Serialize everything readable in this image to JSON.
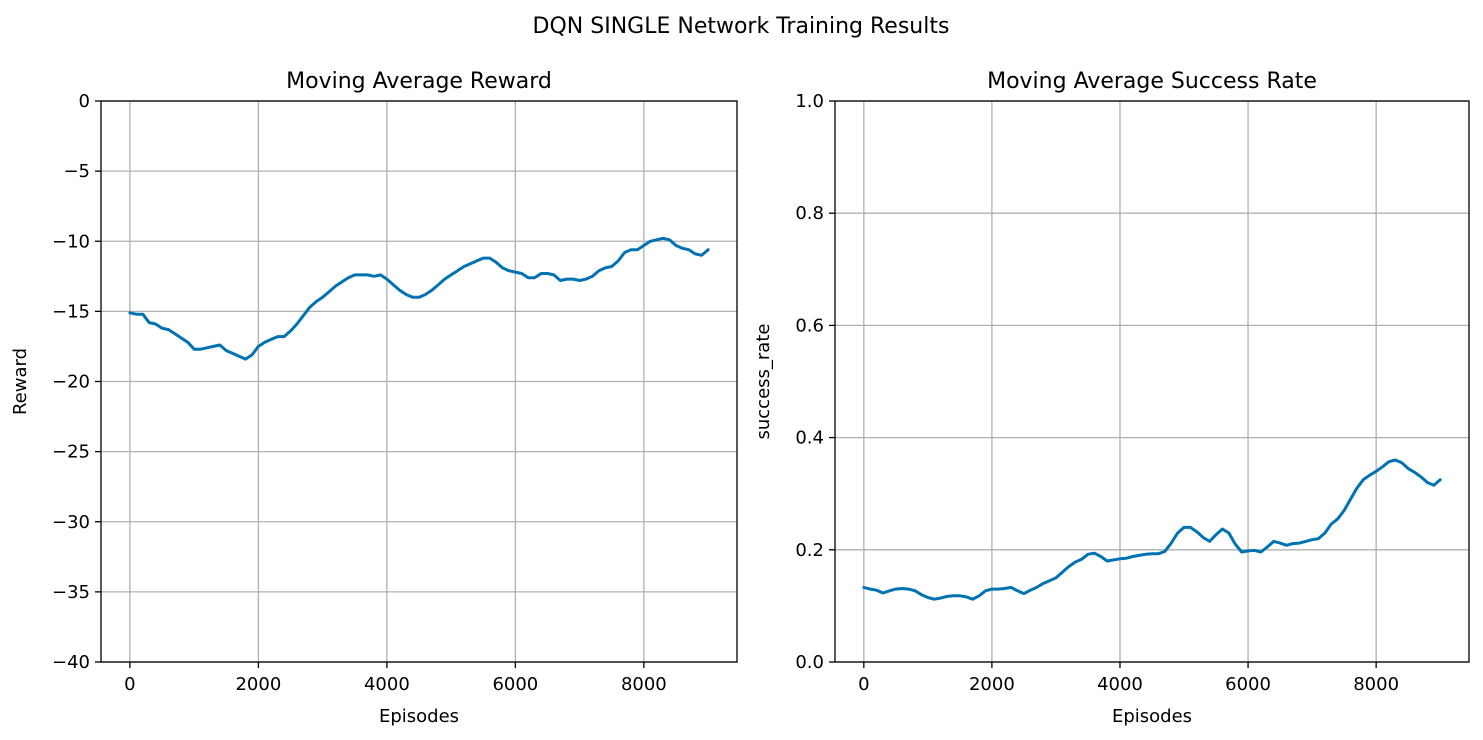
{
  "figure": {
    "suptitle": "DQN SINGLE Network Training Results",
    "line_color": "#0072B2",
    "grid_color": "#b0b0b0"
  },
  "chart_data": [
    {
      "type": "line",
      "title": "Moving Average Reward",
      "xlabel": "Episodes",
      "ylabel": "Reward",
      "xlim": [
        -450,
        9450
      ],
      "ylim": [
        -40,
        0
      ],
      "xticks": [
        0,
        2000,
        4000,
        6000,
        8000
      ],
      "xtick_labels": [
        "0",
        "2000",
        "4000",
        "6000",
        "8000"
      ],
      "yticks": [
        0,
        -5,
        -10,
        -15,
        -20,
        -25,
        -30,
        -35,
        -40
      ],
      "ytick_labels": [
        "0",
        "−5",
        "−10",
        "−15",
        "−20",
        "−25",
        "−30",
        "−35",
        "−40"
      ],
      "grid": true,
      "series": [
        {
          "x": [
            0,
            100,
            200,
            300,
            400,
            500,
            600,
            700,
            800,
            900,
            1000,
            1100,
            1200,
            1300,
            1400,
            1500,
            1600,
            1700,
            1800,
            1900,
            2000,
            2100,
            2200,
            2300,
            2400,
            2500,
            2600,
            2700,
            2800,
            2900,
            3000,
            3100,
            3200,
            3300,
            3400,
            3500,
            3600,
            3700,
            3800,
            3900,
            4000,
            4100,
            4200,
            4300,
            4400,
            4500,
            4600,
            4700,
            4800,
            4900,
            5000,
            5100,
            5200,
            5300,
            5400,
            5500,
            5600,
            5700,
            5800,
            5900,
            6000,
            6100,
            6200,
            6300,
            6400,
            6500,
            6600,
            6700,
            6800,
            6900,
            7000,
            7100,
            7200,
            7300,
            7400,
            7500,
            7600,
            7700,
            7800,
            7900,
            8000,
            8100,
            8200,
            8300,
            8400,
            8500,
            8600,
            8700,
            8800,
            8900,
            9000
          ],
          "y": [
            -15.1,
            -15.2,
            -15.2,
            -15.8,
            -15.9,
            -16.2,
            -16.3,
            -16.6,
            -16.9,
            -17.2,
            -17.7,
            -17.7,
            -17.6,
            -17.5,
            -17.4,
            -17.8,
            -18.0,
            -18.2,
            -18.4,
            -18.1,
            -17.5,
            -17.2,
            -17.0,
            -16.8,
            -16.8,
            -16.4,
            -15.9,
            -15.3,
            -14.7,
            -14.3,
            -14.0,
            -13.6,
            -13.2,
            -12.9,
            -12.6,
            -12.4,
            -12.4,
            -12.4,
            -12.5,
            -12.4,
            -12.7,
            -13.1,
            -13.5,
            -13.8,
            -14.0,
            -14.0,
            -13.8,
            -13.5,
            -13.1,
            -12.7,
            -12.4,
            -12.1,
            -11.8,
            -11.6,
            -11.4,
            -11.2,
            -11.2,
            -11.5,
            -11.9,
            -12.1,
            -12.2,
            -12.3,
            -12.6,
            -12.6,
            -12.3,
            -12.3,
            -12.4,
            -12.8,
            -12.7,
            -12.7,
            -12.8,
            -12.7,
            -12.5,
            -12.1,
            -11.9,
            -11.8,
            -11.4,
            -10.8,
            -10.6,
            -10.6,
            -10.3,
            -10.0,
            -9.9,
            -9.8,
            -9.9,
            -10.3,
            -10.5,
            -10.6,
            -10.9,
            -11.0,
            -10.6
          ]
        }
      ]
    },
    {
      "type": "line",
      "title": "Moving Average Success Rate",
      "xlabel": "Episodes",
      "ylabel": "success_rate",
      "xlim": [
        -450,
        9450
      ],
      "ylim": [
        0,
        1
      ],
      "xticks": [
        0,
        2000,
        4000,
        6000,
        8000
      ],
      "xtick_labels": [
        "0",
        "2000",
        "4000",
        "6000",
        "8000"
      ],
      "yticks": [
        0,
        0.2,
        0.4,
        0.6,
        0.8,
        1.0
      ],
      "ytick_labels": [
        "0.0",
        "0.2",
        "0.4",
        "0.6",
        "0.8",
        "1.0"
      ],
      "grid": true,
      "series": [
        {
          "x": [
            0,
            100,
            200,
            300,
            400,
            500,
            600,
            700,
            800,
            900,
            1000,
            1100,
            1200,
            1300,
            1400,
            1500,
            1600,
            1700,
            1800,
            1900,
            2000,
            2100,
            2200,
            2300,
            2400,
            2500,
            2600,
            2700,
            2800,
            2900,
            3000,
            3100,
            3200,
            3300,
            3400,
            3500,
            3600,
            3700,
            3800,
            3900,
            4000,
            4100,
            4200,
            4300,
            4400,
            4500,
            4600,
            4700,
            4800,
            4900,
            5000,
            5100,
            5200,
            5300,
            5400,
            5500,
            5600,
            5700,
            5800,
            5900,
            6000,
            6100,
            6200,
            6300,
            6400,
            6500,
            6600,
            6700,
            6800,
            6900,
            7000,
            7100,
            7200,
            7300,
            7400,
            7500,
            7600,
            7700,
            7800,
            7900,
            8000,
            8100,
            8200,
            8300,
            8400,
            8500,
            8600,
            8700,
            8800,
            8900,
            9000
          ],
          "y": [
            0.133,
            0.13,
            0.128,
            0.123,
            0.127,
            0.13,
            0.131,
            0.13,
            0.127,
            0.12,
            0.115,
            0.112,
            0.114,
            0.117,
            0.118,
            0.118,
            0.116,
            0.112,
            0.118,
            0.127,
            0.13,
            0.13,
            0.131,
            0.133,
            0.127,
            0.122,
            0.128,
            0.133,
            0.14,
            0.145,
            0.15,
            0.16,
            0.17,
            0.178,
            0.183,
            0.192,
            0.194,
            0.188,
            0.18,
            0.182,
            0.184,
            0.185,
            0.188,
            0.19,
            0.192,
            0.193,
            0.193,
            0.197,
            0.212,
            0.23,
            0.24,
            0.24,
            0.232,
            0.222,
            0.215,
            0.227,
            0.237,
            0.23,
            0.21,
            0.196,
            0.198,
            0.199,
            0.196,
            0.205,
            0.215,
            0.212,
            0.208,
            0.211,
            0.212,
            0.215,
            0.218,
            0.22,
            0.23,
            0.246,
            0.255,
            0.27,
            0.29,
            0.31,
            0.325,
            0.333,
            0.34,
            0.348,
            0.357,
            0.36,
            0.355,
            0.345,
            0.338,
            0.33,
            0.32,
            0.315,
            0.325
          ]
        }
      ]
    }
  ]
}
